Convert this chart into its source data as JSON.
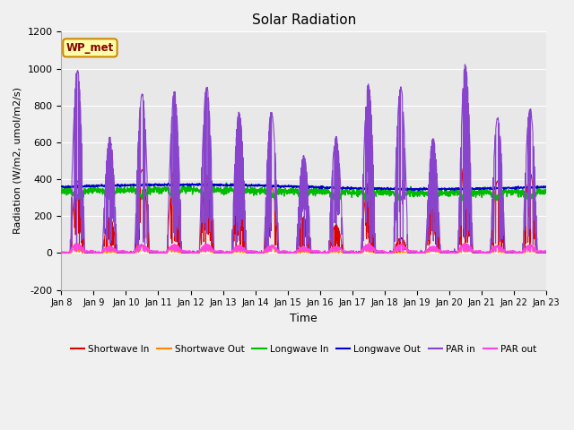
{
  "title": "Solar Radiation",
  "xlabel": "Time",
  "ylabel": "Radiation (W/m2, umol/m2/s)",
  "ylim": [
    -200,
    1200
  ],
  "yticks": [
    -200,
    0,
    200,
    400,
    600,
    800,
    1000,
    1200
  ],
  "x_labels": [
    "Jan 8",
    "Jan 9",
    "Jan 10",
    "Jan 11",
    "Jan 12",
    "Jan 13",
    "Jan 14",
    "Jan 15",
    "Jan 16",
    "Jan 17",
    "Jan 18",
    "Jan 19",
    "Jan 20",
    "Jan 21",
    "Jan 22",
    "Jan 23"
  ],
  "annotation": "WP_met",
  "fig_bg": "#f0f0f0",
  "plot_bg": "#e8e8e8",
  "series_colors": {
    "shortwave_in": "#dd0000",
    "shortwave_out": "#ff8800",
    "longwave_in": "#00bb00",
    "longwave_out": "#0000cc",
    "par_in": "#8844cc",
    "par_out": "#ff44dd"
  },
  "legend_labels": [
    "Shortwave In",
    "Shortwave Out",
    "Longwave In",
    "Longwave Out",
    "PAR in",
    "PAR out"
  ]
}
